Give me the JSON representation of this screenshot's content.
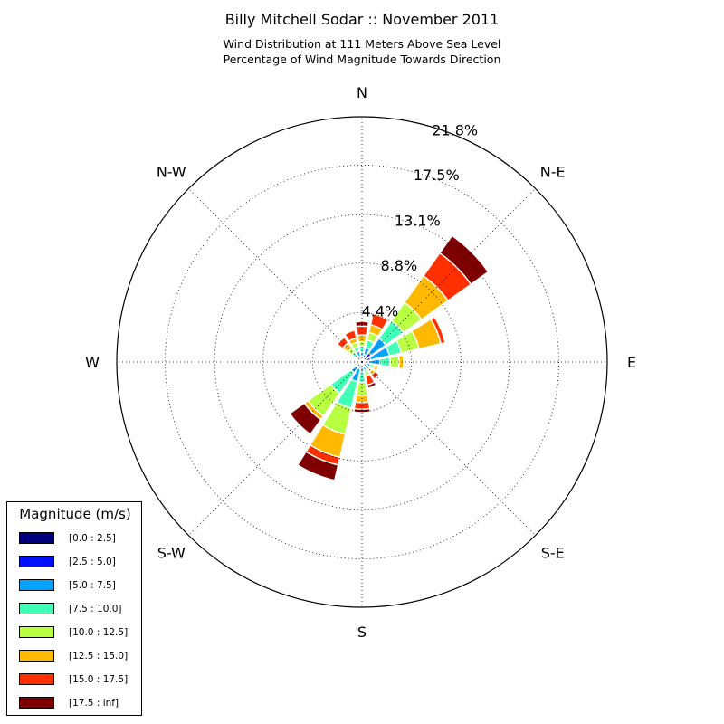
{
  "title": "Billy Mitchell Sodar :: November 2011",
  "subtitle_line1": "Wind Distribution at 111 Meters Above Sea Level",
  "subtitle_line2": "Percentage of Wind Magnitude Towards Direction",
  "chart_data": {
    "type": "windrose",
    "title": "Billy Mitchell Sodar :: November 2011",
    "subtitle": [
      "Wind Distribution at 111 Meters Above Sea Level",
      "Percentage of Wind Magnitude Towards Direction"
    ],
    "direction_labels": [
      "N",
      "N-E",
      "E",
      "S-E",
      "S",
      "S-W",
      "W",
      "N-W"
    ],
    "radial_ticks": [
      "4.4%",
      "8.8%",
      "13.1%",
      "17.5%",
      "21.8%"
    ],
    "radial_tick_values": [
      4.4,
      8.8,
      13.1,
      17.5,
      21.8
    ],
    "r_max": 21.8,
    "grid": true,
    "legend": {
      "title": "Magnitude (m/s)",
      "position": "lower-left",
      "bins": [
        "[0.0 : 2.5]",
        "[2.5 : 5.0]",
        "[5.0 : 7.5]",
        "[7.5 : 10.0]",
        "[10.0 : 12.5]",
        "[12.5 : 15.0]",
        "[15.0 : 17.5]",
        "[17.5 : inf]"
      ],
      "colors": [
        "#00007f",
        "#0010ff",
        "#00a4ff",
        "#40ffb7",
        "#b7ff40",
        "#ffb900",
        "#ff3000",
        "#7f0000"
      ]
    },
    "directions_deg": [
      0,
      22.5,
      45,
      67.5,
      90,
      112.5,
      135,
      157.5,
      180,
      202.5,
      225,
      247.5,
      270,
      292.5,
      315,
      337.5
    ],
    "cumulative_percent": [
      [
        0.2,
        0.5,
        0.9,
        1.4,
        1.8,
        2.4,
        3.2,
        3.6
      ],
      [
        0.2,
        0.7,
        1.3,
        2.0,
        2.7,
        3.4,
        4.4,
        4.4
      ],
      [
        0.2,
        1.0,
        2.6,
        4.5,
        6.5,
        9.4,
        11.9,
        13.8
      ],
      [
        0.2,
        0.8,
        2.5,
        3.6,
        5.2,
        7.2,
        7.6,
        7.6
      ],
      [
        0.2,
        0.6,
        1.6,
        2.5,
        3.3,
        3.7,
        3.7,
        3.7
      ],
      [
        0.2,
        0.4,
        0.8,
        1.0,
        1.2,
        1.5,
        1.5,
        1.5
      ],
      [
        0.2,
        0.4,
        0.7,
        0.9,
        1.1,
        1.4,
        1.9,
        1.9
      ],
      [
        0.2,
        0.4,
        0.8,
        1.0,
        1.3,
        1.3,
        2.1,
        2.4
      ],
      [
        0.2,
        0.4,
        0.9,
        1.8,
        3.0,
        3.6,
        4.2,
        4.5
      ],
      [
        0.2,
        0.6,
        1.8,
        4.2,
        6.6,
        8.7,
        9.4,
        10.8
      ],
      [
        0.2,
        0.5,
        1.2,
        3.4,
        5.9,
        6.3,
        6.3,
        7.9
      ],
      [
        0.2,
        0.3,
        0.5,
        0.7,
        0.7,
        0.7,
        0.7,
        0.7
      ],
      [
        0.2,
        0.4,
        0.4,
        0.4,
        0.4,
        0.4,
        0.4,
        0.4
      ],
      [
        0.2,
        0.3,
        0.4,
        0.5,
        0.5,
        0.5,
        0.5,
        0.5
      ],
      [
        0.2,
        0.4,
        0.6,
        1.1,
        1.6,
        2.1,
        2.7,
        2.7
      ],
      [
        0.2,
        0.5,
        1.0,
        1.4,
        1.8,
        2.2,
        2.9,
        3.0
      ]
    ]
  }
}
